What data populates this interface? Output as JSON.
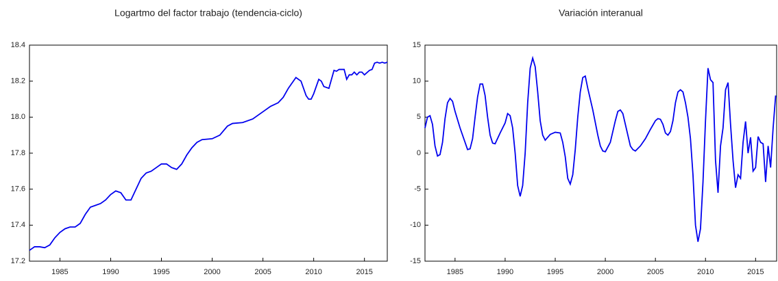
{
  "chart_data": [
    {
      "type": "line",
      "title": "Logartmo del factor trabajo (tendencia-ciclo)",
      "color": "#0000ee",
      "x": [
        1982.0,
        1982.5,
        1983.0,
        1983.5,
        1984.0,
        1984.5,
        1985.0,
        1985.5,
        1986.0,
        1986.5,
        1987.0,
        1987.5,
        1988.0,
        1988.5,
        1989.0,
        1989.5,
        1990.0,
        1990.5,
        1991.0,
        1991.5,
        1992.0,
        1992.5,
        1993.0,
        1993.5,
        1994.0,
        1994.5,
        1995.0,
        1995.5,
        1996.0,
        1996.5,
        1997.0,
        1997.5,
        1998.0,
        1998.5,
        1999.0,
        2000.0,
        2000.75,
        2001.5,
        2002.0,
        2003.0,
        2004.0,
        2005.0,
        2005.75,
        2006.5,
        2007.0,
        2007.5,
        2008.0,
        2008.25,
        2008.75,
        2009.25,
        2009.5,
        2009.75,
        2010.0,
        2010.5,
        2010.75,
        2011.0,
        2011.5,
        2012.0,
        2012.25,
        2012.5,
        2013.0,
        2013.25,
        2013.5,
        2013.75,
        2014.0,
        2014.25,
        2014.5,
        2014.75,
        2015.0,
        2015.5,
        2015.75,
        2016.0,
        2016.25,
        2016.5,
        2016.75,
        2017.0,
        2017.25
      ],
      "values": [
        17.26,
        17.28,
        17.28,
        17.275,
        17.29,
        17.33,
        17.36,
        17.38,
        17.39,
        17.39,
        17.41,
        17.46,
        17.5,
        17.51,
        17.52,
        17.54,
        17.57,
        17.59,
        17.58,
        17.54,
        17.54,
        17.6,
        17.66,
        17.69,
        17.7,
        17.72,
        17.74,
        17.74,
        17.72,
        17.71,
        17.74,
        17.79,
        17.83,
        17.86,
        17.875,
        17.88,
        17.9,
        17.95,
        17.965,
        17.97,
        17.99,
        18.03,
        18.06,
        18.08,
        18.11,
        18.16,
        18.2,
        18.22,
        18.2,
        18.12,
        18.1,
        18.1,
        18.13,
        18.21,
        18.2,
        18.17,
        18.16,
        18.26,
        18.255,
        18.265,
        18.265,
        18.21,
        18.235,
        18.235,
        18.25,
        18.235,
        18.25,
        18.25,
        18.235,
        18.26,
        18.265,
        18.3,
        18.305,
        18.3,
        18.305,
        18.3,
        18.305
      ],
      "xlim": [
        1982,
        2017.25
      ],
      "xticks": [
        1985,
        1990,
        1995,
        2000,
        2005,
        2010,
        2015
      ],
      "ylim": [
        17.2,
        18.4
      ],
      "yticks": [
        17.2,
        17.4,
        17.6,
        17.8,
        {
          "value": 18,
          "label": "18.0"
        },
        18.2,
        18.4
      ]
    },
    {
      "type": "line",
      "title": "Variación interanual",
      "color": "#0000ee",
      "x": [
        1982.0,
        1982.25,
        1982.5,
        1982.75,
        1983.0,
        1983.25,
        1983.5,
        1983.75,
        1984.0,
        1984.25,
        1984.5,
        1984.75,
        1985.0,
        1985.5,
        1986.0,
        1986.25,
        1986.5,
        1986.75,
        1987.0,
        1987.25,
        1987.5,
        1987.75,
        1988.0,
        1988.25,
        1988.5,
        1988.75,
        1989.0,
        1989.5,
        1990.0,
        1990.25,
        1990.5,
        1990.75,
        1991.0,
        1991.25,
        1991.5,
        1991.75,
        1992.0,
        1992.25,
        1992.5,
        1992.75,
        1993.0,
        1993.25,
        1993.5,
        1993.75,
        1994.0,
        1994.5,
        1995.0,
        1995.5,
        1995.75,
        1996.0,
        1996.25,
        1996.5,
        1996.75,
        1997.0,
        1997.25,
        1997.5,
        1997.75,
        1998.0,
        1998.25,
        1998.75,
        1999.25,
        1999.5,
        1999.75,
        2000.0,
        2000.5,
        2001.0,
        2001.25,
        2001.5,
        2001.75,
        2002.0,
        2002.25,
        2002.5,
        2002.75,
        2003.0,
        2003.5,
        2004.0,
        2004.5,
        2005.0,
        2005.25,
        2005.5,
        2005.75,
        2006.0,
        2006.25,
        2006.5,
        2006.75,
        2007.0,
        2007.25,
        2007.5,
        2007.75,
        2008.0,
        2008.25,
        2008.5,
        2008.75,
        2009.0,
        2009.25,
        2009.5,
        2009.75,
        2010.0,
        2010.25,
        2010.5,
        2010.75,
        2011.0,
        2011.25,
        2011.5,
        2011.75,
        2012.0,
        2012.25,
        2012.5,
        2012.75,
        2013.0,
        2013.25,
        2013.5,
        2013.75,
        2014.0,
        2014.25,
        2014.5,
        2014.75,
        2015.0,
        2015.25,
        2015.5,
        2015.75,
        2016.0,
        2016.25,
        2016.5,
        2016.75,
        2017.0
      ],
      "values": [
        3.5,
        5.0,
        5.2,
        4.0,
        1.0,
        -0.4,
        -0.2,
        1.5,
        4.8,
        7.0,
        7.6,
        7.2,
        5.8,
        3.5,
        1.5,
        0.5,
        0.6,
        2.0,
        5.0,
        7.8,
        9.6,
        9.6,
        8.0,
        5.0,
        2.5,
        1.4,
        1.3,
        2.8,
        4.2,
        5.5,
        5.2,
        3.5,
        0.0,
        -4.5,
        -6.0,
        -4.5,
        0.0,
        7.0,
        11.8,
        13.2,
        12.0,
        8.5,
        4.5,
        2.5,
        1.8,
        2.6,
        2.9,
        2.8,
        1.5,
        -0.5,
        -3.5,
        -4.3,
        -3.0,
        0.5,
        5.0,
        8.5,
        10.5,
        10.7,
        9.0,
        6.0,
        2.5,
        1.0,
        0.3,
        0.2,
        1.5,
        4.5,
        5.8,
        6.0,
        5.5,
        4.0,
        2.5,
        1.0,
        0.5,
        0.3,
        1.0,
        2.0,
        3.3,
        4.5,
        4.8,
        4.7,
        4.0,
        2.8,
        2.5,
        3.0,
        4.5,
        7.0,
        8.5,
        8.8,
        8.5,
        7.0,
        5.0,
        2.0,
        -3.0,
        -10.0,
        -12.3,
        -10.5,
        -4.0,
        4.5,
        11.8,
        10.2,
        9.8,
        -1.0,
        -5.5,
        1.0,
        3.5,
        8.8,
        9.8,
        4.0,
        -1.0,
        -4.8,
        -3.0,
        -3.5,
        1.5,
        4.4,
        0.0,
        2.2,
        -2.5,
        -2.0,
        2.3,
        1.5,
        1.3,
        -4.0,
        1.0,
        -2.0,
        3.5,
        8.0
      ],
      "xlim": [
        1982,
        2017.1
      ],
      "xticks": [
        1985,
        1990,
        1995,
        2000,
        2005,
        2010,
        2015
      ],
      "ylim": [
        -15,
        15
      ],
      "yticks": [
        -15,
        -10,
        -5,
        0,
        5,
        10,
        15
      ]
    }
  ]
}
